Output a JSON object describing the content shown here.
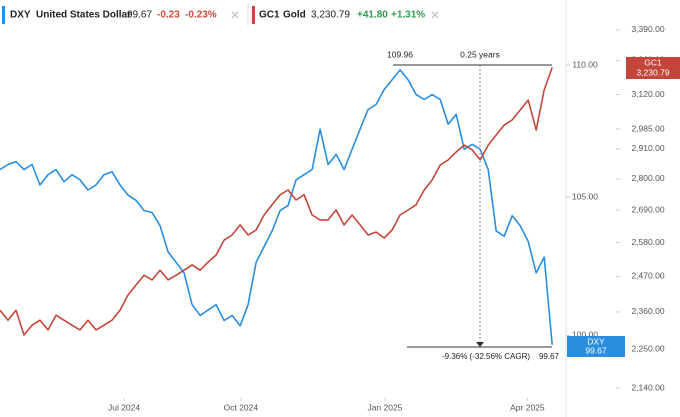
{
  "chart_data": {
    "type": "line",
    "log": true,
    "grid": false,
    "xlim": [
      0,
      70.6
    ],
    "xticks": [
      {
        "value": 15.5,
        "label": "Jul 2024"
      },
      {
        "value": 30.1,
        "label": "Oct 2024"
      },
      {
        "value": 48.1,
        "label": "Jan 2025"
      },
      {
        "value": 65.9,
        "label": "Apr 2025"
      }
    ],
    "ylim": [
      97.82,
      112.55
    ],
    "yticks": [
      {
        "value": 100,
        "label": "100.00"
      },
      {
        "value": 105,
        "label": "105.00"
      },
      {
        "value": 110,
        "label": "110.00"
      }
    ],
    "y2lim": [
      2113,
      3523
    ],
    "y2ticks": [
      {
        "value": 2140,
        "label": "2,140.00"
      },
      {
        "value": 2250,
        "label": "2,250.00"
      },
      {
        "value": 2360,
        "label": "2,360.00"
      },
      {
        "value": 2470,
        "label": "2,470.00"
      },
      {
        "value": 2580,
        "label": "2,580.00"
      },
      {
        "value": 2690,
        "label": "2,690.00"
      },
      {
        "value": 2800,
        "label": "2,800.00"
      },
      {
        "value": 2910,
        "label": "2,910.00"
      },
      {
        "value": 2985,
        "label": "2,985.00"
      },
      {
        "value": 3120,
        "label": "3,120.00"
      },
      {
        "value": 3260,
        "label": "3,260.00"
      },
      {
        "value": 3390,
        "label": "3,390.00"
      }
    ],
    "series": [
      {
        "name": "DXY",
        "description": "United States Dollar",
        "color": "#2a8ee0",
        "axis": "y",
        "last_label": "99.67",
        "change": "-0.23",
        "change_pct": "-0.23%",
        "change_color": "#d04a3c",
        "values": [
          106.02,
          106.21,
          106.32,
          106.02,
          106.21,
          105.45,
          105.83,
          106.02,
          105.57,
          105.83,
          105.64,
          105.26,
          105.45,
          105.83,
          105.94,
          105.45,
          105.07,
          104.88,
          104.5,
          104.43,
          103.94,
          102.99,
          102.61,
          102.23,
          101.09,
          100.71,
          100.9,
          101.09,
          100.53,
          100.71,
          100.34,
          101.09,
          102.61,
          103.18,
          103.75,
          104.5,
          104.69,
          105.64,
          105.83,
          106.02,
          107.54,
          106.21,
          106.59,
          106.02,
          106.78,
          107.54,
          108.29,
          108.48,
          109.05,
          109.43,
          109.81,
          109.43,
          108.86,
          108.67,
          108.86,
          108.67,
          107.73,
          108.11,
          106.78,
          106.97,
          106.78,
          106.02,
          103.75,
          103.56,
          104.31,
          103.94,
          103.37,
          102.23,
          102.8,
          99.67
        ]
      },
      {
        "name": "GC1",
        "description": "Gold",
        "color": "#c4463a",
        "axis": "y2",
        "last_label": "3,230.79",
        "change": "+41.80",
        "change_pct": "+1.31%",
        "change_color": "#2e9b4f",
        "values": [
          2365,
          2335,
          2365,
          2291,
          2320,
          2335,
          2306,
          2350,
          2335,
          2320,
          2306,
          2335,
          2306,
          2320,
          2335,
          2365,
          2412,
          2443,
          2474,
          2459,
          2490,
          2459,
          2474,
          2490,
          2507,
          2490,
          2516,
          2539,
          2588,
          2605,
          2639,
          2605,
          2622,
          2673,
          2708,
          2743,
          2760,
          2725,
          2743,
          2673,
          2656,
          2656,
          2690,
          2639,
          2673,
          2639,
          2605,
          2615,
          2595,
          2622,
          2673,
          2690,
          2708,
          2760,
          2796,
          2850,
          2869,
          2898,
          2924,
          2906,
          2869,
          2924,
          2962,
          3000,
          3020,
          3059,
          3098,
          2981,
          3139,
          3230.79
        ]
      }
    ],
    "annotations": {
      "high": "109.96",
      "span": "0.25 years",
      "change": "-9.36% (-32.56% CAGR)"
    }
  }
}
